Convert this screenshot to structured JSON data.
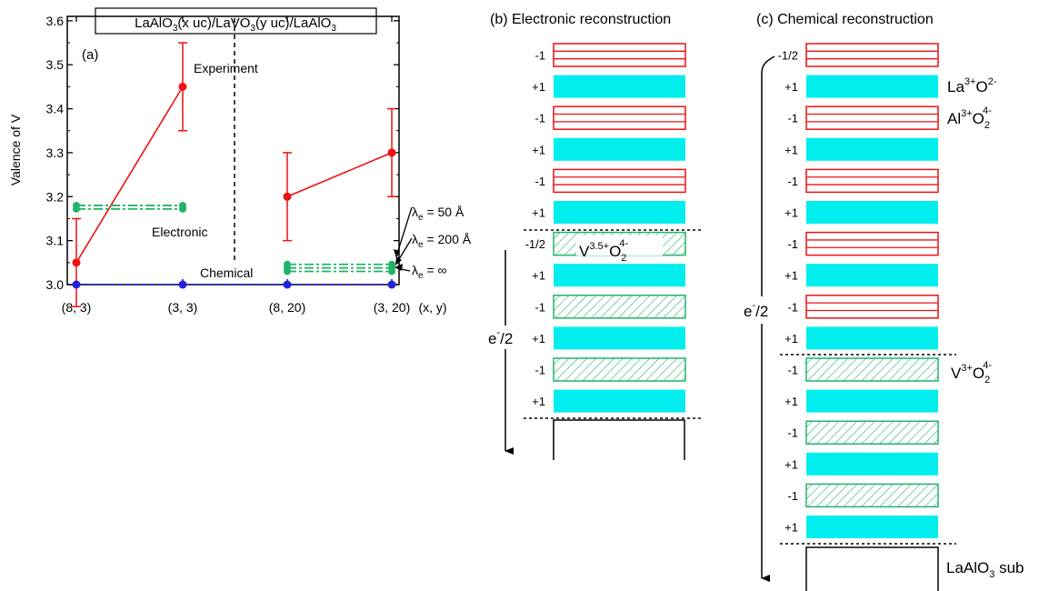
{
  "panel_a": {
    "title_parts": {
      "a": "LaAlO",
      "s1": "3",
      "b": "(x uc)/LaVO",
      "s2": "3",
      "c": "(y uc)/LaAlO",
      "s3": "3"
    },
    "panel_label": "(a)",
    "ylabel": "Valence of V",
    "xaxis_label": "(x, y)",
    "annotations": {
      "experiment": "Experiment",
      "electronic": "Electronic",
      "chemical": "Chemical"
    },
    "lambda_labels": [
      {
        "sym": "λ",
        "sub": "e",
        "val": " = 50 Å"
      },
      {
        "sym": "λ",
        "sub": "e",
        "val": " = 200 Å"
      },
      {
        "sym": "λ",
        "sub": "e",
        "val": " = ∞"
      }
    ]
  },
  "chart_data": {
    "type": "line",
    "categories": [
      "(8, 3)",
      "(3, 3)",
      "(8, 20)",
      "(3, 20)"
    ],
    "ylim": [
      3.0,
      3.6
    ],
    "yticks": [
      "3.0",
      "3.1",
      "3.2",
      "3.3",
      "3.4",
      "3.5",
      "3.6"
    ],
    "xlabel": "(x, y)",
    "ylabel": "Valence of V",
    "series": [
      {
        "name": "Experiment",
        "color": "#ee1111",
        "groups": [
          [
            {
              "x": "(8, 3)",
              "y": 3.05,
              "err": 0.1
            },
            {
              "x": "(3, 3)",
              "y": 3.45,
              "err": 0.1
            }
          ],
          [
            {
              "x": "(8, 20)",
              "y": 3.2,
              "err": 0.1
            },
            {
              "x": "(3, 20)",
              "y": 3.3,
              "err": 0.1
            }
          ]
        ]
      },
      {
        "name": "Electronic",
        "color": "#22b36a",
        "groups": [
          [
            {
              "x": "(8, 3)",
              "y": 3.172
            },
            {
              "x": "(3, 3)",
              "y": 3.172
            }
          ],
          [
            {
              "x": "(8, 3)",
              "y": 3.18
            },
            {
              "x": "(3, 3)",
              "y": 3.18
            }
          ],
          [
            {
              "x": "(8, 20)",
              "y": 3.03
            },
            {
              "x": "(3, 20)",
              "y": 3.03
            }
          ],
          [
            {
              "x": "(8, 20)",
              "y": 3.038
            },
            {
              "x": "(3, 20)",
              "y": 3.038
            }
          ],
          [
            {
              "x": "(8, 20)",
              "y": 3.046
            },
            {
              "x": "(3, 20)",
              "y": 3.046
            }
          ]
        ]
      },
      {
        "name": "Chemical",
        "color": "#2222dd",
        "groups": [
          [
            {
              "x": "(8, 3)",
              "y": 3.0
            },
            {
              "x": "(3, 3)",
              "y": 3.0
            },
            {
              "x": "(8, 20)",
              "y": 3.0
            },
            {
              "x": "(3, 20)",
              "y": 3.0
            }
          ]
        ]
      }
    ]
  },
  "panel_b": {
    "title": "(b) Electronic reconstruction",
    "layer_labels": [
      "-1",
      "+1",
      "-1",
      "+1",
      "-1",
      "+1",
      "-1/2",
      "+1",
      "-1",
      "+1",
      "-1",
      "+1"
    ],
    "v_label": {
      "base": "V",
      "sup1": "3.5+",
      "o": "O",
      "sub": "2",
      "sup2": "4-"
    },
    "electron_label": {
      "e": "e",
      "sup": "-",
      "rest": "/2"
    }
  },
  "panel_c": {
    "title": "(c) Chemical reconstruction",
    "layer_labels": [
      "-1/2",
      "+1",
      "-1",
      "+1",
      "-1",
      "+1",
      "-1",
      "+1",
      "-1",
      "+1",
      "-1",
      "+1",
      "-1",
      "+1",
      "-1",
      "+1"
    ],
    "la_label": {
      "base": "La",
      "sup1": "3+",
      "o": "O",
      "sup2": "2-"
    },
    "al_label": {
      "base": "Al",
      "sup1": "3+",
      "o": "O",
      "sub": "2",
      "sup2": "4-"
    },
    "v_label": {
      "base": "V",
      "sup1": "3+",
      "o": "O",
      "sub": "2",
      "sup2": "4-"
    },
    "electron_label": {
      "e": "e",
      "sup": "-",
      "rest": "/2"
    },
    "substrate_label": {
      "base": "LaAlO",
      "sub": "3",
      "rest": " sub"
    }
  },
  "colors": {
    "red": "#ee1111",
    "cyan": "#00eeee",
    "green": "#22b36a",
    "blue": "#2222dd"
  }
}
